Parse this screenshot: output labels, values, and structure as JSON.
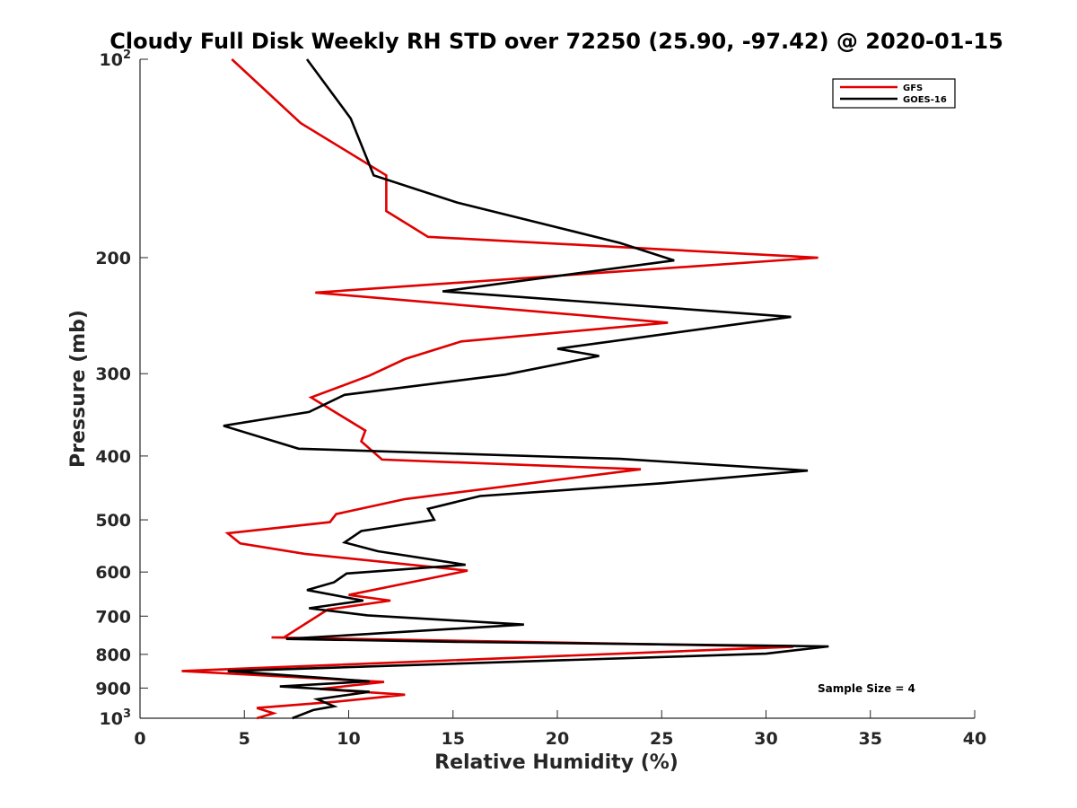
{
  "chart_data": {
    "type": "line",
    "title": "Cloudy Full Disk Weekly RH STD over 72250 (25.90, -97.42) @ 2020-01-15",
    "xlabel": "Relative Humidity (%)",
    "ylabel": "Pressure (mb)",
    "xlim": [
      0,
      40
    ],
    "ylim": [
      100,
      1000
    ],
    "y_scale": "log",
    "y_reversed": true,
    "grid": false,
    "legend_position": "top-right",
    "annotation": "Sample Size = 4",
    "x_ticks": [
      "0",
      "5",
      "10",
      "15",
      "20",
      "25",
      "30",
      "35",
      "40"
    ],
    "y_ticks": [
      {
        "value": 100,
        "label": "10",
        "sup": "2"
      },
      {
        "value": 200,
        "label": "200",
        "sup": ""
      },
      {
        "value": 300,
        "label": "300",
        "sup": ""
      },
      {
        "value": 400,
        "label": "400",
        "sup": ""
      },
      {
        "value": 500,
        "label": "500",
        "sup": ""
      },
      {
        "value": 600,
        "label": "600",
        "sup": ""
      },
      {
        "value": 700,
        "label": "700",
        "sup": ""
      },
      {
        "value": 800,
        "label": "800",
        "sup": ""
      },
      {
        "value": 900,
        "label": "900",
        "sup": ""
      },
      {
        "value": 1000,
        "label": "10",
        "sup": "3"
      }
    ],
    "series": [
      {
        "name": "GFS",
        "color": "#e00000",
        "points": [
          [
            4.4,
            100
          ],
          [
            7.7,
            125
          ],
          [
            11.8,
            150
          ],
          [
            11.8,
            170
          ],
          [
            13.8,
            186
          ],
          [
            32.5,
            200
          ],
          [
            8.4,
            226
          ],
          [
            25.3,
            251
          ],
          [
            15.4,
            268
          ],
          [
            12.7,
            285
          ],
          [
            11.0,
            302
          ],
          [
            8.2,
            326
          ],
          [
            10.8,
            366
          ],
          [
            10.6,
            380
          ],
          [
            11.6,
            405
          ],
          [
            24.0,
            419
          ],
          [
            12.7,
            465
          ],
          [
            9.4,
            490
          ],
          [
            9.1,
            504
          ],
          [
            4.2,
            524
          ],
          [
            4.8,
            543
          ],
          [
            7.9,
            563
          ],
          [
            15.7,
            597
          ],
          [
            13.5,
            617
          ],
          [
            10.0,
            650
          ],
          [
            12.0,
            663
          ],
          [
            9.0,
            684
          ],
          [
            6.9,
            754
          ],
          [
            6.3,
            754
          ],
          [
            31.3,
            779
          ],
          [
            2.0,
            848
          ],
          [
            11.7,
            881
          ],
          [
            8.6,
            903
          ],
          [
            12.7,
            921
          ],
          [
            9.4,
            944
          ],
          [
            5.6,
            965
          ],
          [
            6.4,
            983
          ],
          [
            5.6,
            1000
          ]
        ]
      },
      {
        "name": "GOES-16",
        "color": "#000000",
        "points": [
          [
            8.0,
            100
          ],
          [
            10.1,
            123
          ],
          [
            11.2,
            150
          ],
          [
            15.2,
            165
          ],
          [
            23.0,
            190
          ],
          [
            25.6,
            202
          ],
          [
            14.5,
            225
          ],
          [
            31.2,
            246
          ],
          [
            20.0,
            275
          ],
          [
            22.0,
            282
          ],
          [
            17.5,
            301
          ],
          [
            9.8,
            323
          ],
          [
            8.1,
            343
          ],
          [
            4.0,
            360
          ],
          [
            7.6,
            390
          ],
          [
            23.0,
            404
          ],
          [
            32.0,
            421
          ],
          [
            25.0,
            440
          ],
          [
            16.3,
            460
          ],
          [
            13.8,
            481
          ],
          [
            14.1,
            500
          ],
          [
            10.6,
            520
          ],
          [
            9.8,
            541
          ],
          [
            11.4,
            558
          ],
          [
            15.6,
            585
          ],
          [
            9.9,
            603
          ],
          [
            9.3,
            622
          ],
          [
            8.0,
            639
          ],
          [
            10.7,
            663
          ],
          [
            8.1,
            681
          ],
          [
            10.9,
            698
          ],
          [
            18.4,
            721
          ],
          [
            7.0,
            758
          ],
          [
            15.4,
            766
          ],
          [
            33.0,
            778
          ],
          [
            30.0,
            798
          ],
          [
            4.2,
            848
          ],
          [
            11.0,
            879
          ],
          [
            6.7,
            895
          ],
          [
            11.0,
            912
          ],
          [
            8.5,
            936
          ],
          [
            9.3,
            959
          ],
          [
            8.3,
            972
          ],
          [
            7.3,
            1000
          ]
        ]
      }
    ]
  }
}
